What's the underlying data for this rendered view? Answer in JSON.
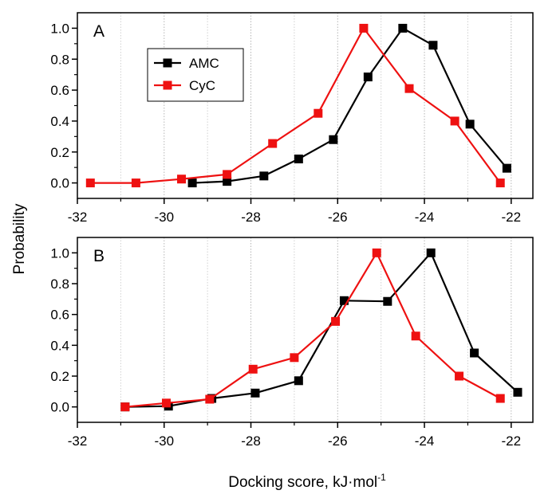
{
  "chart_data": [
    {
      "type": "line",
      "panel_label": "A",
      "xlim": [
        -32,
        -21.5
      ],
      "ylim": [
        -0.1,
        1.1
      ],
      "xticks": [
        -32,
        -30,
        -28,
        -26,
        -24,
        -22
      ],
      "yticks": [
        0.0,
        0.2,
        0.4,
        0.6,
        0.8,
        1.0
      ],
      "xtick_labels": [
        "-32",
        "-30",
        "-28",
        "-26",
        "-24",
        "-22"
      ],
      "ytick_labels": [
        "0.0",
        "0.2",
        "0.4",
        "0.6",
        "0.8",
        "1.0"
      ],
      "grid": "vertical dotted",
      "legend": {
        "placement": "upper-left",
        "entries": [
          "AMC",
          "CyC"
        ]
      },
      "series": [
        {
          "name": "AMC",
          "color": "#000000",
          "marker": "square",
          "x": [
            -29.35,
            -28.55,
            -27.7,
            -26.9,
            -26.1,
            -25.3,
            -24.5,
            -23.8,
            -22.95,
            -22.1
          ],
          "y": [
            0.0,
            0.01,
            0.045,
            0.155,
            0.28,
            0.685,
            1.0,
            0.89,
            0.38,
            0.095
          ]
        },
        {
          "name": "CyC",
          "color": "#ee1111",
          "marker": "square",
          "x": [
            -31.7,
            -30.65,
            -29.6,
            -28.55,
            -27.5,
            -26.45,
            -25.4,
            -24.35,
            -23.3,
            -22.25
          ],
          "y": [
            0.0,
            0.0,
            0.025,
            0.055,
            0.255,
            0.45,
            1.0,
            0.61,
            0.4,
            0.0
          ]
        }
      ]
    },
    {
      "type": "line",
      "panel_label": "B",
      "xlim": [
        -32,
        -21.5
      ],
      "ylim": [
        -0.1,
        1.1
      ],
      "xticks": [
        -32,
        -30,
        -28,
        -26,
        -24,
        -22
      ],
      "yticks": [
        0.0,
        0.2,
        0.4,
        0.6,
        0.8,
        1.0
      ],
      "xtick_labels": [
        "-32",
        "-30",
        "-28",
        "-26",
        "-24",
        "-22"
      ],
      "ytick_labels": [
        "0.0",
        "0.2",
        "0.4",
        "0.6",
        "0.8",
        "1.0"
      ],
      "grid": "vertical dotted",
      "series": [
        {
          "name": "AMC",
          "color": "#000000",
          "marker": "square",
          "x": [
            -30.9,
            -29.9,
            -28.9,
            -27.9,
            -26.9,
            -25.85,
            -24.85,
            -23.85,
            -22.85,
            -21.85
          ],
          "y": [
            0.0,
            0.005,
            0.055,
            0.09,
            0.17,
            0.69,
            0.685,
            1.0,
            0.35,
            0.095
          ]
        },
        {
          "name": "CyC",
          "color": "#ee1111",
          "marker": "square",
          "x": [
            -30.9,
            -29.95,
            -28.95,
            -27.95,
            -27.0,
            -26.05,
            -25.1,
            -24.2,
            -23.2,
            -22.25
          ],
          "y": [
            0.0,
            0.025,
            0.05,
            0.245,
            0.32,
            0.555,
            1.0,
            0.46,
            0.2,
            0.055
          ]
        }
      ]
    }
  ],
  "labels": {
    "ylabel": "Probability",
    "xlabel_main": "Docking score, kJ·mol",
    "xlabel_sup": "-1"
  }
}
